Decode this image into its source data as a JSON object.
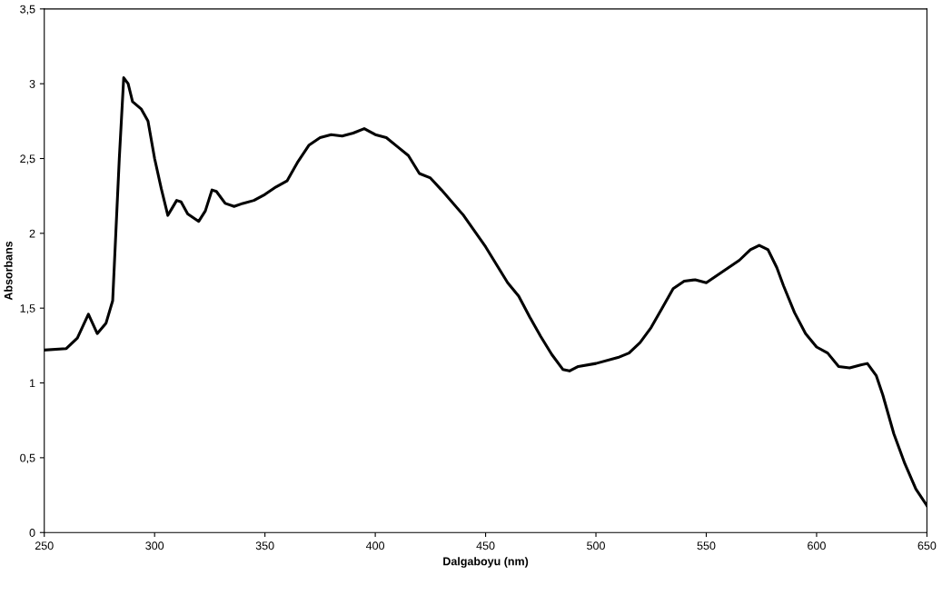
{
  "chart_data": {
    "type": "line",
    "xlabel": "Dalgaboyu (nm)",
    "ylabel": "Absorbans",
    "x": [
      250,
      260,
      265,
      270,
      274,
      278,
      281,
      284,
      286,
      288,
      290,
      294,
      297,
      300,
      303,
      306,
      308,
      310,
      312,
      315,
      320,
      323,
      326,
      328,
      332,
      336,
      340,
      345,
      350,
      355,
      360,
      365,
      370,
      375,
      380,
      385,
      390,
      395,
      400,
      405,
      410,
      415,
      420,
      425,
      430,
      440,
      450,
      460,
      465,
      470,
      475,
      480,
      485,
      488,
      492,
      500,
      510,
      515,
      520,
      525,
      530,
      535,
      540,
      545,
      550,
      555,
      560,
      565,
      570,
      574,
      578,
      582,
      585,
      590,
      595,
      600,
      605,
      610,
      615,
      620,
      623,
      627,
      630,
      635,
      640,
      645,
      650
    ],
    "series": [
      {
        "color": "#000000",
        "values": [
          1.22,
          1.23,
          1.3,
          1.46,
          1.33,
          1.4,
          1.55,
          2.5,
          3.04,
          3.0,
          2.88,
          2.83,
          2.75,
          2.5,
          2.3,
          2.12,
          2.17,
          2.22,
          2.21,
          2.13,
          2.08,
          2.15,
          2.29,
          2.28,
          2.2,
          2.18,
          2.2,
          2.22,
          2.26,
          2.31,
          2.35,
          2.48,
          2.59,
          2.64,
          2.66,
          2.65,
          2.67,
          2.7,
          2.66,
          2.64,
          2.58,
          2.52,
          2.4,
          2.37,
          2.29,
          2.12,
          1.91,
          1.67,
          1.58,
          1.44,
          1.31,
          1.19,
          1.09,
          1.08,
          1.11,
          1.13,
          1.17,
          1.2,
          1.27,
          1.37,
          1.5,
          1.63,
          1.68,
          1.69,
          1.67,
          1.72,
          1.77,
          1.82,
          1.89,
          1.92,
          1.89,
          1.77,
          1.65,
          1.47,
          1.33,
          1.24,
          1.2,
          1.11,
          1.1,
          1.12,
          1.13,
          1.05,
          0.92,
          0.66,
          0.46,
          0.29,
          0.18
        ]
      }
    ],
    "xlim": [
      250,
      650
    ],
    "xticks": [
      250,
      300,
      350,
      400,
      450,
      500,
      550,
      600,
      650
    ],
    "ylim": [
      0,
      3.5
    ],
    "yticks": [
      0,
      {
        "value": 0.5,
        "label": "0,5"
      },
      1,
      {
        "value": 1.5,
        "label": "1,5"
      },
      2,
      {
        "value": 2.5,
        "label": "2,5"
      },
      3,
      {
        "value": 3.5,
        "label": "3,5"
      }
    ],
    "grid": false,
    "marker": "none",
    "line_style": "solid"
  }
}
